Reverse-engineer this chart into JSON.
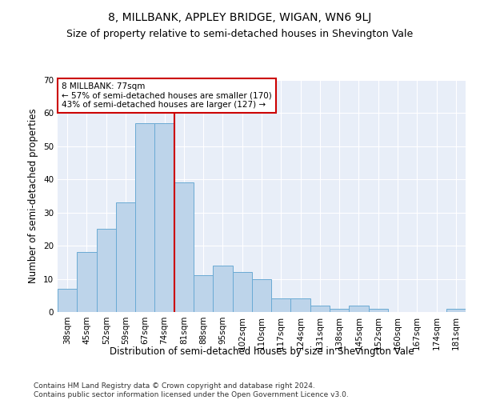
{
  "title": "8, MILLBANK, APPLEY BRIDGE, WIGAN, WN6 9LJ",
  "subtitle": "Size of property relative to semi-detached houses in Shevington Vale",
  "xlabel": "Distribution of semi-detached houses by size in Shevington Vale",
  "ylabel": "Number of semi-detached properties",
  "categories": [
    "38sqm",
    "45sqm",
    "52sqm",
    "59sqm",
    "67sqm",
    "74sqm",
    "81sqm",
    "88sqm",
    "95sqm",
    "102sqm",
    "110sqm",
    "117sqm",
    "124sqm",
    "131sqm",
    "138sqm",
    "145sqm",
    "152sqm",
    "160sqm",
    "167sqm",
    "174sqm",
    "181sqm"
  ],
  "values": [
    7,
    18,
    25,
    33,
    57,
    57,
    39,
    11,
    14,
    12,
    10,
    4,
    4,
    2,
    1,
    2,
    1,
    0,
    0,
    0,
    1
  ],
  "bar_color": "#bdd4ea",
  "bar_edge_color": "#6aaad4",
  "background_color": "#e8eef8",
  "vline_x_index": 5.5,
  "vline_color": "#cc0000",
  "annotation_text": "8 MILLBANK: 77sqm\n← 57% of semi-detached houses are smaller (170)\n43% of semi-detached houses are larger (127) →",
  "annotation_box_color": "#ffffff",
  "annotation_box_edge": "#cc0000",
  "ylim": [
    0,
    70
  ],
  "yticks": [
    0,
    10,
    20,
    30,
    40,
    50,
    60,
    70
  ],
  "footer_line1": "Contains HM Land Registry data © Crown copyright and database right 2024.",
  "footer_line2": "Contains public sector information licensed under the Open Government Licence v3.0.",
  "title_fontsize": 10,
  "subtitle_fontsize": 9,
  "xlabel_fontsize": 8.5,
  "ylabel_fontsize": 8.5,
  "tick_fontsize": 7.5,
  "annotation_fontsize": 7.5,
  "footer_fontsize": 6.5
}
